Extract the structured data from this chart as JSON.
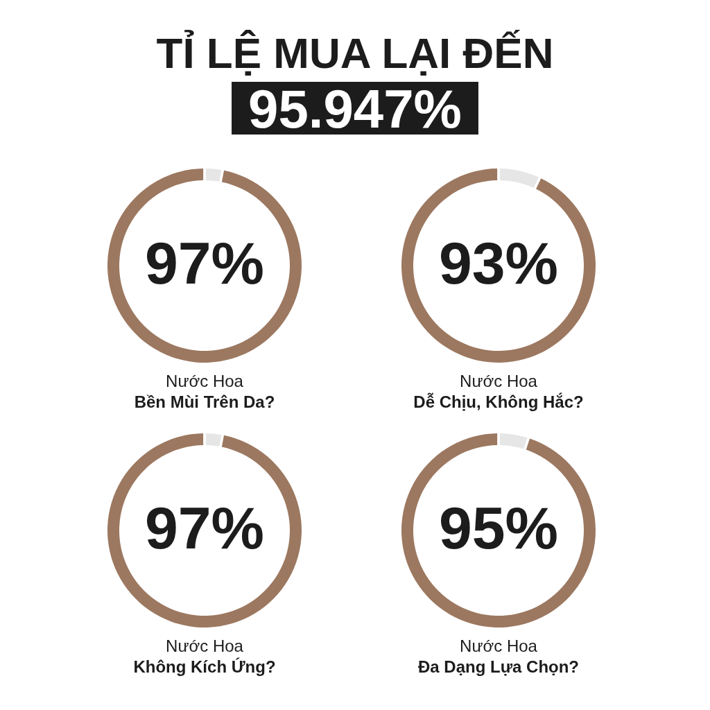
{
  "chart_data": [
    {
      "type": "other",
      "title": "TỈ LỆ MUA LẠI ĐẾN",
      "subtitle": "95.947%"
    },
    {
      "type": "donut",
      "title": "Nước Hoa",
      "subtitle": "Bền Mùi Trên Da?",
      "categories": [
        null,
        null
      ],
      "values": [
        3,
        97
      ],
      "colors": [
        "#e6e6e6",
        "#9c7860"
      ],
      "value_labels": [
        null,
        "97%"
      ]
    },
    {
      "type": "donut",
      "title": "Nước Hoa",
      "subtitle": "Dễ Chịu, Không Hắc?",
      "categories": [
        null,
        null
      ],
      "values": [
        7,
        93
      ],
      "colors": [
        "#e6e6e6",
        "#9c7860"
      ],
      "value_labels": [
        null,
        "93%"
      ]
    },
    {
      "type": "donut",
      "title": "Nước Hoa",
      "subtitle": "Không Kích Ứng?",
      "categories": [
        null,
        null
      ],
      "values": [
        3,
        97
      ],
      "colors": [
        "#e6e6e6",
        "#9c7860"
      ],
      "value_labels": [
        null,
        "97%"
      ]
    },
    {
      "type": "donut",
      "title": "Nước Hoa",
      "subtitle": "Đa Dạng Lựa Chọn?",
      "categories": [
        null,
        null
      ],
      "values": [
        5,
        95
      ],
      "colors": [
        "#e6e6e6",
        "#9c7860"
      ],
      "value_labels": [
        null,
        "95%"
      ]
    }
  ]
}
